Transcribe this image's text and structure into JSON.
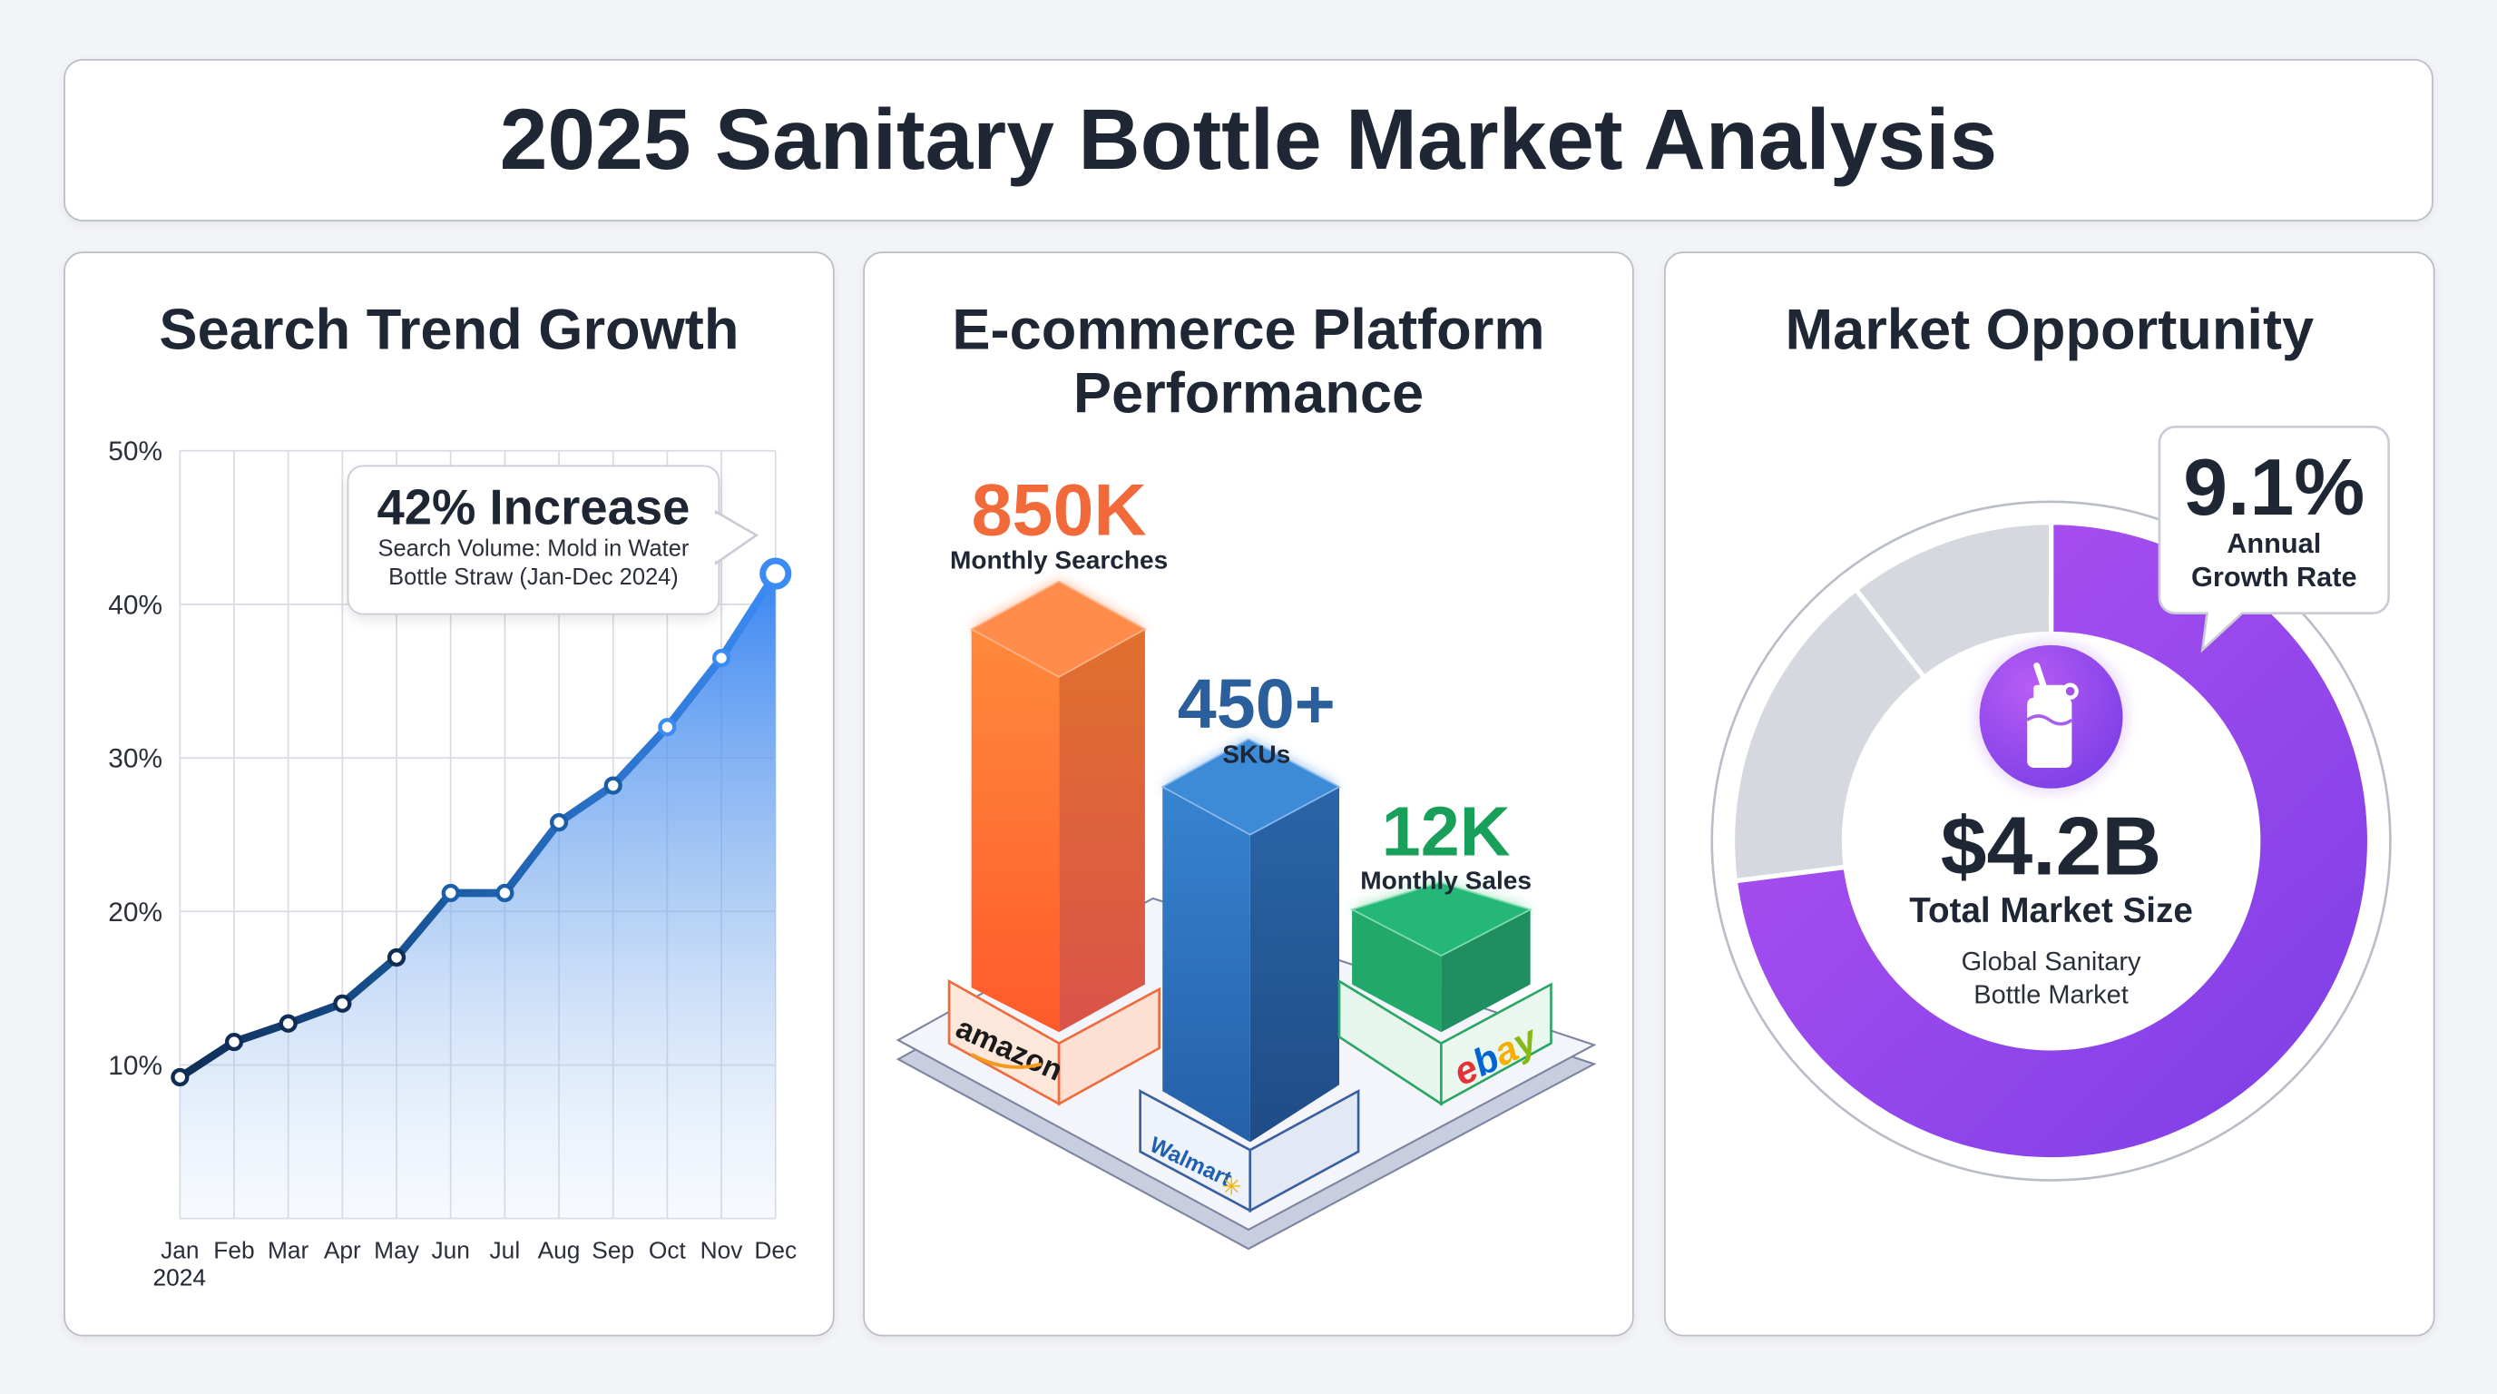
{
  "title": "2025 Sanitary Bottle Market Analysis",
  "colors": {
    "line_dark": "#0f2d55",
    "line_light": "#3b8bf5",
    "orange": "#f26a3a",
    "blue": "#2b63a6",
    "green": "#18a05a",
    "purple": "#9b4ff0",
    "gray_segment": "#d5d8de"
  },
  "panel1": {
    "heading": "Search Trend Growth",
    "callout": {
      "headline": "42% Increase",
      "line1": "Search Volume: Mold in Water",
      "line2": "Bottle Straw (Jan-Dec 2024)"
    },
    "year_label": "2024"
  },
  "panel2": {
    "heading_line1": "E-commerce Platform",
    "heading_line2": "Performance",
    "platforms": [
      {
        "name": "amazon",
        "value_label": "850K",
        "metric": "Monthly Searches",
        "color": "#f26a3a"
      },
      {
        "name": "Walmart",
        "value_label": "450+",
        "metric": "SKUs",
        "color": "#2b63a6"
      },
      {
        "name": "ebay",
        "value_label": "12K",
        "metric": "Monthly Sales",
        "color": "#18a05a"
      }
    ]
  },
  "panel3": {
    "heading": "Market Opportunity",
    "growth": {
      "value": "9.1%",
      "line1": "Annual",
      "line2": "Growth Rate"
    },
    "market": {
      "value": "$4.2B",
      "label": "Total Market Size",
      "sub1": "Global Sanitary",
      "sub2": "Bottle Market"
    },
    "icon": "water-bottle-icon"
  },
  "chart_data": [
    {
      "type": "area",
      "title": "Search Trend Growth",
      "categories": [
        "Jan",
        "Feb",
        "Mar",
        "Apr",
        "May",
        "Jun",
        "Jul",
        "Aug",
        "Sep",
        "Oct",
        "Nov",
        "Dec"
      ],
      "values": [
        9.2,
        11.5,
        12.7,
        14.0,
        17.0,
        21.2,
        21.2,
        25.8,
        28.2,
        32.0,
        36.5,
        42.0
      ],
      "yticks": [
        "10%",
        "20%",
        "30%",
        "40%",
        "50%"
      ],
      "ytick_values": [
        10,
        20,
        30,
        40,
        50
      ],
      "ylim": [
        0,
        50
      ],
      "grid": true,
      "unit": "%"
    },
    {
      "type": "bar",
      "title": "E-commerce Platform Performance",
      "categories": [
        "amazon",
        "Walmart",
        "ebay"
      ],
      "value_labels": [
        "850K",
        "450+",
        "12K"
      ],
      "metrics": [
        "Monthly Searches",
        "SKUs",
        "Monthly Sales"
      ]
    },
    {
      "type": "pie",
      "title": "Market Opportunity",
      "segments": [
        {
          "fraction": 0.73,
          "color": "#9b4ff0"
        },
        {
          "fraction": 0.165,
          "color": "#d5d8de"
        },
        {
          "fraction": 0.105,
          "color": "#d5d8de"
        }
      ]
    }
  ]
}
